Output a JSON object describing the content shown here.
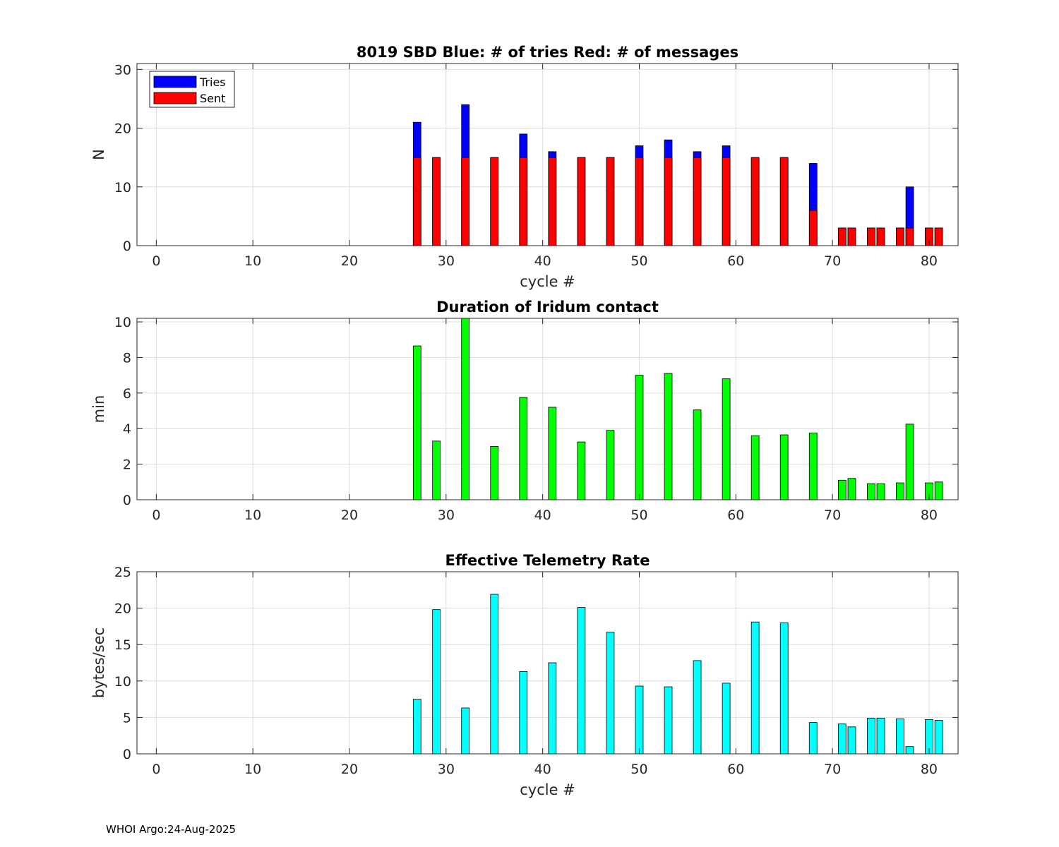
{
  "footer": "WHOI Argo:24-Aug-2025",
  "colors": {
    "tries": "#0000ff",
    "sent": "#ff0000",
    "duration": "#00ff00",
    "rate": "#00ffff",
    "grid": "#dcdcdc",
    "axis": "#262626"
  },
  "chart_data": [
    {
      "type": "bar",
      "title": "8019 SBD  Blue: # of tries   Red: # of messages",
      "xlabel": "cycle #",
      "ylabel": "N",
      "xlim": [
        -2,
        83
      ],
      "ylim": [
        0,
        31
      ],
      "xticks": [
        0,
        10,
        20,
        30,
        40,
        50,
        60,
        70,
        80
      ],
      "yticks": [
        0,
        10,
        20,
        30
      ],
      "grid": true,
      "legend": {
        "placement": "top-left",
        "entries": [
          "Tries",
          "Sent"
        ]
      },
      "x": [
        27,
        29,
        32,
        35,
        38,
        41,
        44,
        47,
        50,
        53,
        56,
        59,
        62,
        65,
        68,
        71,
        72,
        74,
        75,
        77,
        78,
        80,
        81
      ],
      "series": [
        {
          "name": "Tries",
          "color": "#0000ff",
          "values": [
            21,
            15,
            24,
            15,
            19,
            16,
            15,
            15,
            17,
            18,
            16,
            17,
            15,
            15,
            14,
            3,
            3,
            3,
            3,
            3,
            10,
            3,
            3
          ]
        },
        {
          "name": "Sent",
          "color": "#ff0000",
          "values": [
            15,
            15,
            15,
            15,
            15,
            15,
            15,
            15,
            15,
            15,
            15,
            15,
            15,
            15,
            6,
            3,
            3,
            3,
            3,
            3,
            3,
            3,
            3
          ]
        }
      ]
    },
    {
      "type": "bar",
      "title": "Duration of Iridum contact",
      "xlabel": "",
      "ylabel": "min",
      "xlim": [
        -2,
        83
      ],
      "ylim": [
        0,
        10.2
      ],
      "xticks": [
        0,
        10,
        20,
        30,
        40,
        50,
        60,
        70,
        80
      ],
      "yticks": [
        0,
        2,
        4,
        6,
        8,
        10
      ],
      "grid": true,
      "x": [
        27,
        29,
        32,
        35,
        38,
        41,
        44,
        47,
        50,
        53,
        56,
        59,
        62,
        65,
        68,
        71,
        72,
        74,
        75,
        77,
        78,
        80,
        81
      ],
      "series": [
        {
          "name": "Duration",
          "color": "#00ff00",
          "values": [
            8.65,
            3.3,
            10.2,
            3.0,
            5.75,
            5.2,
            3.25,
            3.9,
            7.0,
            7.1,
            5.05,
            6.8,
            3.6,
            3.65,
            3.75,
            1.1,
            1.2,
            0.9,
            0.9,
            0.95,
            4.25,
            0.95,
            1.0
          ]
        }
      ]
    },
    {
      "type": "bar",
      "title": "Effective Telemetry Rate",
      "xlabel": "cycle #",
      "ylabel": "bytes/sec",
      "xlim": [
        -2,
        83
      ],
      "ylim": [
        0,
        25
      ],
      "xticks": [
        0,
        10,
        20,
        30,
        40,
        50,
        60,
        70,
        80
      ],
      "yticks": [
        0,
        5,
        10,
        15,
        20,
        25
      ],
      "grid": true,
      "x": [
        27,
        29,
        32,
        35,
        38,
        41,
        44,
        47,
        50,
        53,
        56,
        59,
        62,
        65,
        68,
        71,
        72,
        74,
        75,
        77,
        78,
        80,
        81
      ],
      "series": [
        {
          "name": "Rate",
          "color": "#00ffff",
          "values": [
            7.5,
            19.8,
            6.3,
            21.9,
            11.3,
            12.5,
            20.1,
            16.7,
            9.3,
            9.2,
            12.8,
            9.7,
            18.1,
            18.0,
            4.3,
            4.1,
            3.7,
            4.9,
            4.9,
            4.8,
            1.0,
            4.7,
            4.6
          ]
        }
      ]
    }
  ]
}
